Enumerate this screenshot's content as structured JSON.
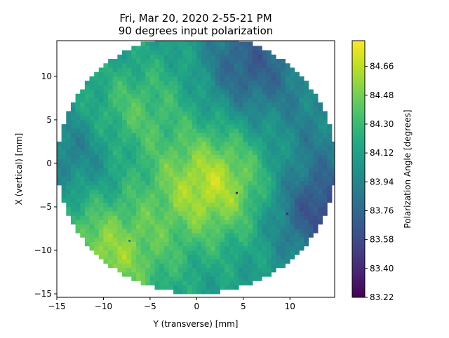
{
  "chart_data": {
    "type": "heatmap",
    "title": "Fri, Mar 20, 2020 2-55-21 PM",
    "subtitle": "90 degrees input polarization",
    "xlabel": "Y (transverse) [mm]",
    "ylabel": "X (vertical) [mm]",
    "xlim": [
      -15,
      14.8
    ],
    "ylim": [
      -15.4,
      14.1
    ],
    "x_ticks": [
      -15,
      -10,
      -5,
      0,
      5,
      10
    ],
    "x_tick_labels": [
      "−15",
      "−10",
      "−5",
      "0",
      "5",
      "10"
    ],
    "y_ticks": [
      -15,
      -10,
      -5,
      0,
      5,
      10
    ],
    "y_tick_labels": [
      "−15",
      "−10",
      "−5",
      "0",
      "5",
      "10"
    ],
    "aperture_radius_mm": 15,
    "colormap": "viridis",
    "colorbar": {
      "label": "Polarization Angle [degrees]",
      "min": 83.22,
      "max": 84.82,
      "ticks": [
        83.22,
        83.4,
        83.58,
        83.76,
        83.94,
        84.12,
        84.3,
        84.48,
        84.66
      ],
      "tick_labels": [
        "83.22",
        "83.40",
        "83.58",
        "83.76",
        "83.94",
        "84.12",
        "84.30",
        "84.48",
        "84.66"
      ]
    },
    "grid": false,
    "legend": "none",
    "value_field": {
      "baseline": 84.1,
      "features": [
        {
          "x": 1.5,
          "y": -2.5,
          "sigma": 4.5,
          "amplitude": 0.55
        },
        {
          "x": -9.5,
          "y": -10.5,
          "sigma": 4.5,
          "amplitude": 0.45
        },
        {
          "x": -7.0,
          "y": 6.0,
          "sigma": 3.5,
          "amplitude": 0.25
        },
        {
          "x": 5.0,
          "y": 11.5,
          "sigma": 4.0,
          "amplitude": -0.45
        },
        {
          "x": 13.5,
          "y": -5.5,
          "sigma": 4.0,
          "amplitude": -0.5
        },
        {
          "x": 13.0,
          "y": 4.0,
          "sigma": 4.0,
          "amplitude": -0.15
        },
        {
          "x": -13.5,
          "y": 1.5,
          "sigma": 3.5,
          "amplitude": -0.2
        },
        {
          "x": 0.0,
          "y": 11.0,
          "sigma": 3.5,
          "amplitude": 0.15
        }
      ],
      "defects": [
        {
          "x": 4.3,
          "y": -3.4,
          "value": 83.35
        },
        {
          "x": 9.7,
          "y": -5.8,
          "value": 83.4
        },
        {
          "x": -7.2,
          "y": -8.9,
          "value": 83.8
        }
      ]
    }
  }
}
